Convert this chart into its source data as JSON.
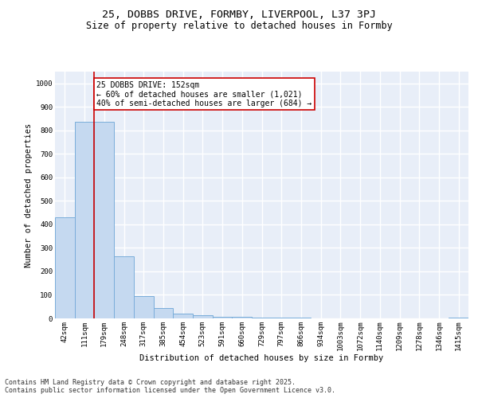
{
  "title_line1": "25, DOBBS DRIVE, FORMBY, LIVERPOOL, L37 3PJ",
  "title_line2": "Size of property relative to detached houses in Formby",
  "xlabel": "Distribution of detached houses by size in Formby",
  "ylabel": "Number of detached properties",
  "bar_labels": [
    "42sqm",
    "111sqm",
    "179sqm",
    "248sqm",
    "317sqm",
    "385sqm",
    "454sqm",
    "523sqm",
    "591sqm",
    "660sqm",
    "729sqm",
    "797sqm",
    "866sqm",
    "934sqm",
    "1003sqm",
    "1072sqm",
    "1140sqm",
    "1209sqm",
    "1278sqm",
    "1346sqm",
    "1415sqm"
  ],
  "bar_values": [
    430,
    835,
    835,
    265,
    95,
    45,
    20,
    13,
    8,
    8,
    2,
    2,
    2,
    1,
    1,
    1,
    0,
    0,
    0,
    0,
    5
  ],
  "bar_color": "#c5d9f0",
  "bar_edge_color": "#7aadda",
  "ylim": [
    0,
    1050
  ],
  "yticks": [
    0,
    100,
    200,
    300,
    400,
    500,
    600,
    700,
    800,
    900,
    1000
  ],
  "red_line_x": 1.5,
  "annotation_text": "25 DOBBS DRIVE: 152sqm\n← 60% of detached houses are smaller (1,021)\n40% of semi-detached houses are larger (684) →",
  "annotation_box_color": "#ffffff",
  "annotation_box_edge_color": "#cc0000",
  "footer_text": "Contains HM Land Registry data © Crown copyright and database right 2025.\nContains public sector information licensed under the Open Government Licence v3.0.",
  "background_color": "#e8eef8",
  "grid_color": "#ffffff",
  "title_fontsize": 9.5,
  "subtitle_fontsize": 8.5,
  "axis_label_fontsize": 7.5,
  "tick_fontsize": 6.5,
  "annotation_fontsize": 7,
  "footer_fontsize": 6
}
